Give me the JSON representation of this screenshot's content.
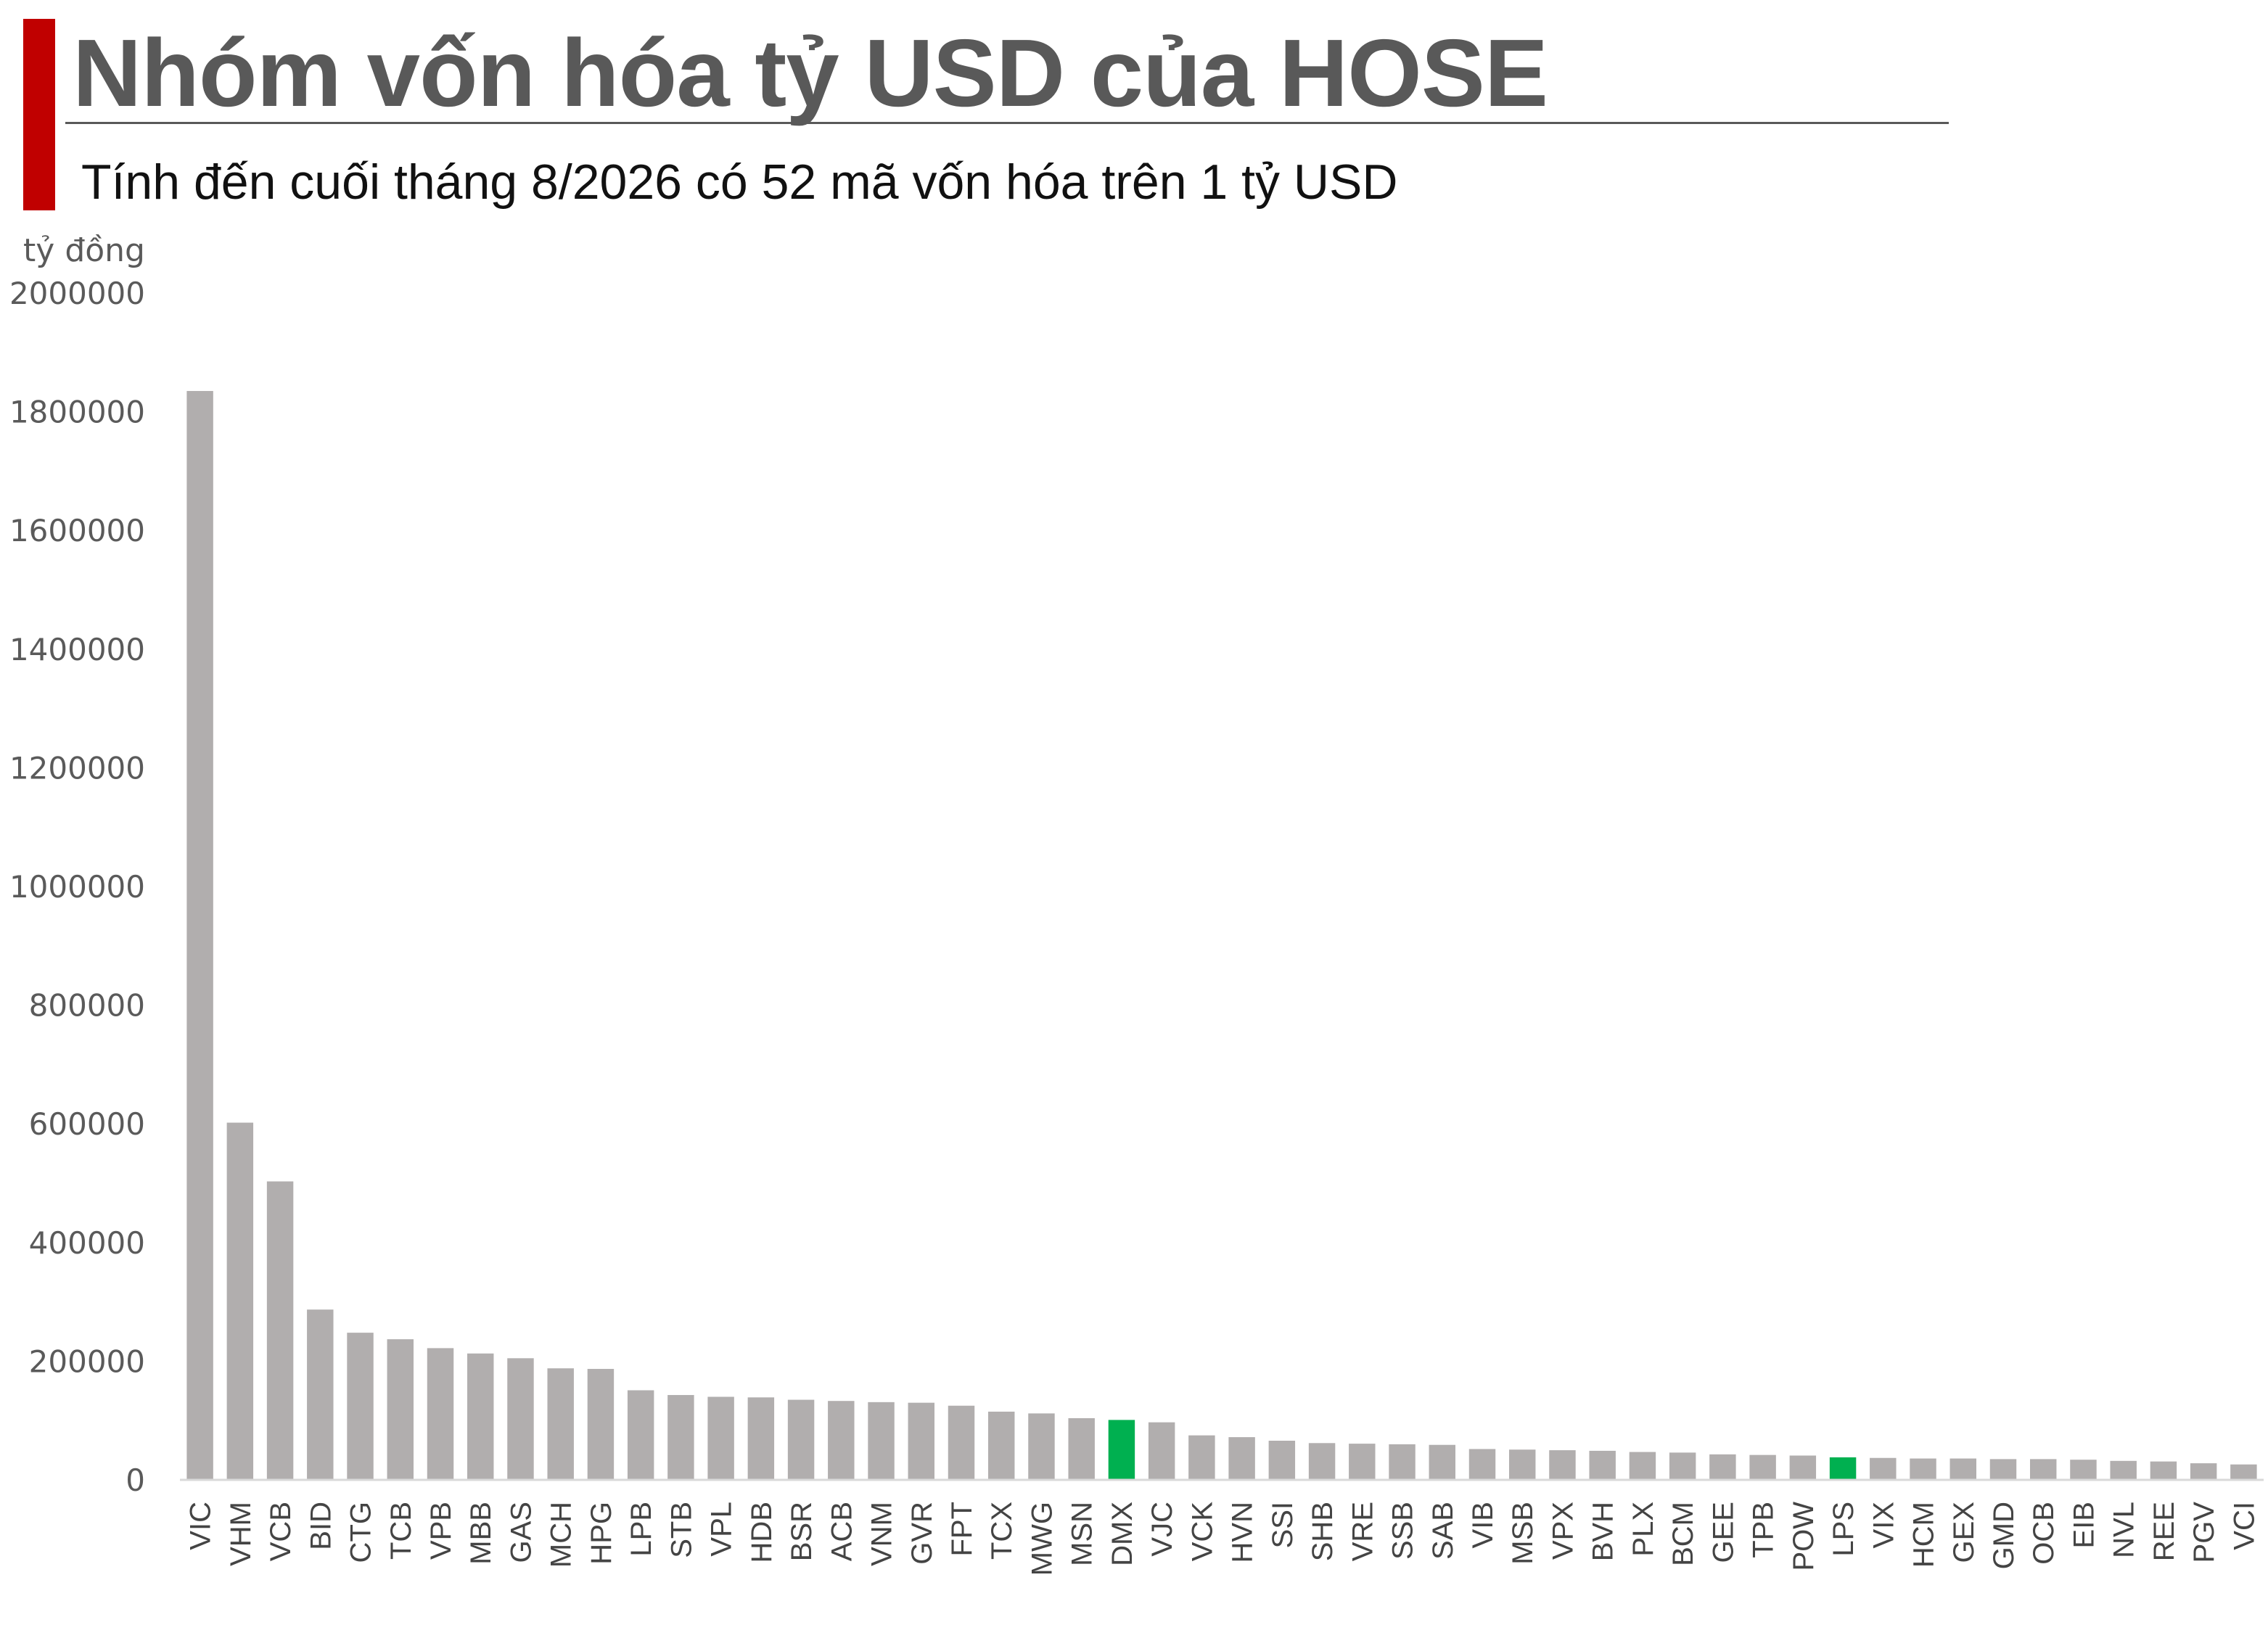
{
  "header": {
    "title": "Nhóm vốn hóa tỷ USD của HOSE",
    "subtitle": "Tính đến cuối tháng 8/2026 có 52 mã vốn hóa trên 1 tỷ USD",
    "accent_color": "#c00000"
  },
  "chart_data": {
    "type": "bar",
    "ylabel": "tỷ đồng",
    "ylim": [
      0,
      2000000
    ],
    "yticks": [
      0,
      200000,
      400000,
      600000,
      800000,
      1000000,
      1200000,
      1400000,
      1600000,
      1800000,
      2000000
    ],
    "grid": false,
    "legend": "none",
    "bar_color": "#b1aeae",
    "highlight_color": "#00b050",
    "highlighted": [
      "DMX",
      "LPS"
    ],
    "categories": [
      "VIC",
      "VHM",
      "VCB",
      "BID",
      "CTG",
      "TCB",
      "VPB",
      "MBB",
      "GAS",
      "MCH",
      "HPG",
      "LPB",
      "STB",
      "VPL",
      "HDB",
      "BSR",
      "ACB",
      "VNM",
      "GVR",
      "FPT",
      "TCX",
      "MWG",
      "MSN",
      "DMX",
      "VJC",
      "VCK",
      "HVN",
      "SSI",
      "SHB",
      "VRE",
      "SSB",
      "SAB",
      "VIB",
      "MSB",
      "VPX",
      "BVH",
      "PLX",
      "BCM",
      "GEE",
      "TPB",
      "POW",
      "LPS",
      "VIX",
      "HCM",
      "GEX",
      "GMD",
      "OCB",
      "EIB",
      "NVL",
      "REE",
      "PGV",
      "VCI"
    ],
    "values": [
      1835000,
      602000,
      503000,
      287000,
      248000,
      237000,
      222000,
      213000,
      205000,
      188000,
      187000,
      151000,
      143000,
      140000,
      139000,
      135000,
      133000,
      131000,
      130000,
      125000,
      115000,
      112000,
      104000,
      101000,
      97000,
      75000,
      72000,
      66000,
      62000,
      61000,
      60000,
      59000,
      52000,
      51000,
      50000,
      49000,
      47000,
      46000,
      43000,
      42000,
      41000,
      38000,
      37000,
      36000,
      36000,
      35000,
      35000,
      34000,
      32000,
      31000,
      28000,
      26000
    ]
  }
}
